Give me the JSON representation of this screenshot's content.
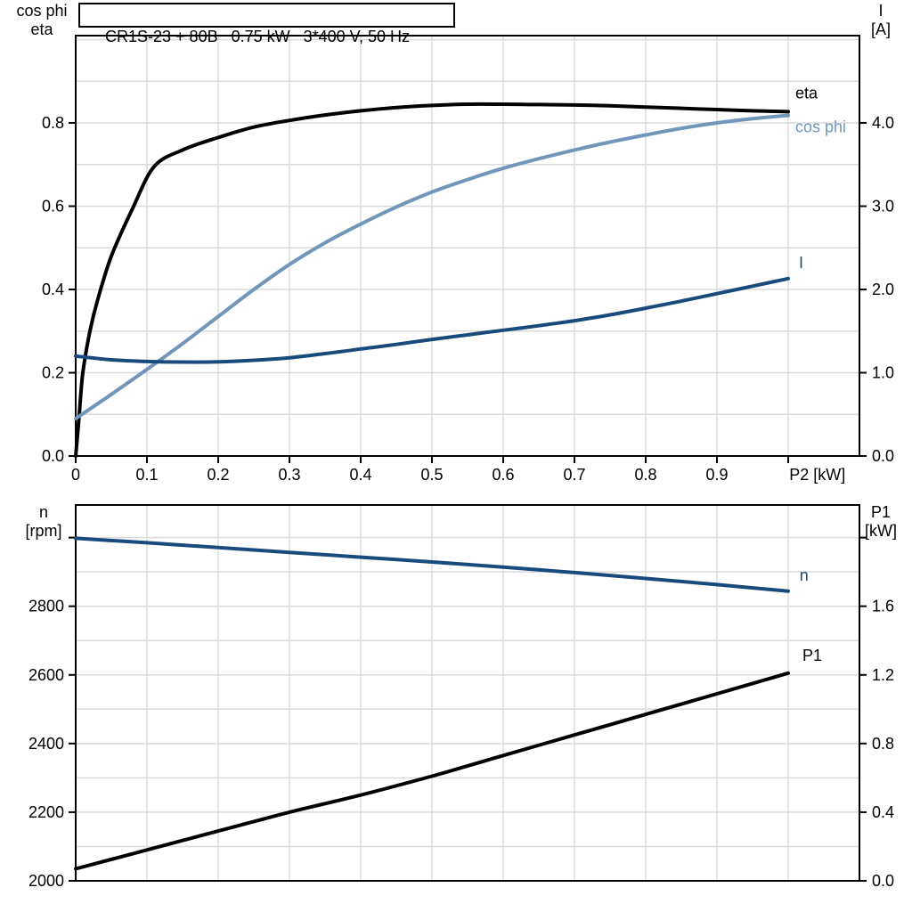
{
  "title_box": {
    "text": "CR1S-23 + 80B   0.75 kW   3*400 V, 50 Hz"
  },
  "colors": {
    "curve_black": "#000000",
    "curve_light_blue": "#7295ba",
    "curve_dark_blue": "#1a4a7c",
    "grid": "#d9dbdd",
    "axis": "#000000",
    "background": "#ffffff"
  },
  "top_chart_corner_labels": {
    "left_line1": "cos phi",
    "left_line2": "eta",
    "right_line1": "I",
    "right_line2": "[A]"
  },
  "bottom_chart_corner_labels": {
    "left_line1": "n",
    "left_line2": "[rpm]",
    "right_line1": "P1",
    "right_line2": "[kW]"
  },
  "chart_data": [
    {
      "type": "line",
      "title": "CR1S-23 + 80B  0.75 kW  3*400 V, 50 Hz",
      "xlabel": "P2 [kW]",
      "x_label_pos": 1.041,
      "x_range": [
        0,
        1.1
      ],
      "x_tick_marks": true,
      "x_ticks": [
        0,
        0.1,
        0.2,
        0.3,
        0.4,
        0.5,
        0.6,
        0.7,
        0.8,
        0.9,
        1.0
      ],
      "x_tick_labels": [
        "0",
        "0.1",
        "0.2",
        "0.3",
        "0.4",
        "0.5",
        "0.6",
        "0.7",
        "0.8",
        "0.9",
        ""
      ],
      "left_axis": {
        "label": "cos phi / eta",
        "range": [
          0,
          1.0096
        ],
        "ticks": [
          0,
          0.2,
          0.4,
          0.6,
          0.8
        ],
        "tick_labels": [
          "0.0",
          "0.2",
          "0.4",
          "0.6",
          "0.8"
        ]
      },
      "right_axis": {
        "label": "I [A]",
        "range": [
          0,
          5.048
        ],
        "ticks": [
          0,
          1,
          2,
          3,
          4
        ],
        "tick_labels": [
          "0.0",
          "1.0",
          "2.0",
          "3.0",
          "4.0"
        ]
      },
      "grid_x_values": [
        0.1,
        0.2,
        0.3,
        0.4,
        0.5,
        0.6,
        0.7,
        0.8,
        0.9,
        1.0
      ],
      "grid_left_values": [
        0.1,
        0.2,
        0.3,
        0.4,
        0.5,
        0.6,
        0.7,
        0.8,
        0.9,
        1.0
      ],
      "series": [
        {
          "name": "eta",
          "axis": "left",
          "color": "curve_black",
          "x": [
            0,
            0.005,
            0.01,
            0.02,
            0.03,
            0.05,
            0.08,
            0.11,
            0.15,
            0.2,
            0.25,
            0.3,
            0.35,
            0.4,
            0.45,
            0.5,
            0.55,
            0.6,
            0.65,
            0.7,
            0.75,
            0.8,
            0.85,
            0.9,
            0.95,
            1.0
          ],
          "y": [
            0,
            0.1,
            0.2,
            0.3,
            0.37,
            0.48,
            0.595,
            0.695,
            0.735,
            0.765,
            0.79,
            0.806,
            0.819,
            0.829,
            0.837,
            0.842,
            0.845,
            0.845,
            0.844,
            0.843,
            0.841,
            0.838,
            0.835,
            0.832,
            0.829,
            0.827
          ]
        },
        {
          "name": "cos phi",
          "axis": "left",
          "color": "curve_light_blue",
          "x": [
            0,
            0.05,
            0.1,
            0.15,
            0.2,
            0.25,
            0.3,
            0.35,
            0.4,
            0.45,
            0.5,
            0.55,
            0.6,
            0.65,
            0.7,
            0.75,
            0.8,
            0.85,
            0.9,
            0.95,
            1.0
          ],
          "y": [
            0.09,
            0.148,
            0.208,
            0.27,
            0.335,
            0.4,
            0.46,
            0.512,
            0.557,
            0.598,
            0.634,
            0.664,
            0.691,
            0.714,
            0.735,
            0.754,
            0.771,
            0.787,
            0.8,
            0.81,
            0.818
          ]
        },
        {
          "name": "I",
          "axis": "right",
          "color": "curve_dark_blue",
          "x": [
            0,
            0.05,
            0.1,
            0.15,
            0.2,
            0.25,
            0.3,
            0.35,
            0.4,
            0.45,
            0.5,
            0.55,
            0.6,
            0.65,
            0.7,
            0.75,
            0.8,
            0.85,
            0.9,
            0.95,
            1.0
          ],
          "y": [
            1.2,
            1.155,
            1.135,
            1.128,
            1.13,
            1.15,
            1.18,
            1.23,
            1.285,
            1.34,
            1.4,
            1.455,
            1.51,
            1.565,
            1.625,
            1.695,
            1.775,
            1.86,
            1.95,
            2.04,
            2.13
          ]
        }
      ],
      "labels": [
        {
          "text": "eta",
          "axis": "left",
          "x": 1.01,
          "y": 0.872,
          "color": "curve_black"
        },
        {
          "text": "cos phi",
          "axis": "left",
          "x": 1.01,
          "y": 0.79,
          "color": "curve_light_blue"
        },
        {
          "text": "I",
          "axis": "right",
          "x": 1.015,
          "y": 2.32,
          "color": "curve_dark_blue"
        }
      ]
    },
    {
      "type": "line",
      "title": "",
      "xlabel": "",
      "x_range": [
        0,
        1.1
      ],
      "x_tick_marks": false,
      "x_ticks": [],
      "x_tick_labels": [],
      "left_axis": {
        "label": "n [rpm]",
        "range": [
          2000,
          3095
        ],
        "ticks": [
          2000,
          2200,
          2400,
          2600,
          2800,
          3000
        ],
        "tick_labels": [
          "2000",
          "2200",
          "2400",
          "2600",
          "2800",
          ""
        ]
      },
      "right_axis": {
        "label": "P1 [kW]",
        "range": [
          0,
          2.19
        ],
        "ticks": [
          0,
          0.4,
          0.8,
          1.2,
          1.6,
          2.0
        ],
        "tick_labels": [
          "0.0",
          "0.4",
          "0.8",
          "1.2",
          "1.6",
          ""
        ]
      },
      "grid_x_values": [
        0.1,
        0.2,
        0.3,
        0.4,
        0.5,
        0.6,
        0.7,
        0.8,
        0.9,
        1.0
      ],
      "grid_left_values": [
        2100,
        2200,
        2300,
        2400,
        2500,
        2600,
        2700,
        2800,
        2900,
        3000
      ],
      "series": [
        {
          "name": "n",
          "axis": "left",
          "color": "curve_dark_blue",
          "x": [
            0,
            0.1,
            0.2,
            0.3,
            0.4,
            0.5,
            0.6,
            0.7,
            0.8,
            0.9,
            1.0
          ],
          "y": [
            2998,
            2985,
            2971,
            2957,
            2943,
            2929,
            2914,
            2898,
            2881,
            2863,
            2844
          ]
        },
        {
          "name": "P1",
          "axis": "right",
          "color": "curve_black",
          "x": [
            0,
            0.1,
            0.2,
            0.3,
            0.4,
            0.5,
            0.6,
            0.7,
            0.8,
            0.9,
            1.0
          ],
          "y": [
            0.07,
            0.18,
            0.29,
            0.4,
            0.5,
            0.61,
            0.73,
            0.85,
            0.97,
            1.09,
            1.21
          ]
        }
      ],
      "labels": [
        {
          "text": "n",
          "axis": "left",
          "x": 1.016,
          "y": 2890,
          "color": "curve_dark_blue"
        },
        {
          "text": "P1",
          "axis": "right",
          "x": 1.02,
          "y": 1.313,
          "color": "curve_black"
        }
      ]
    }
  ]
}
